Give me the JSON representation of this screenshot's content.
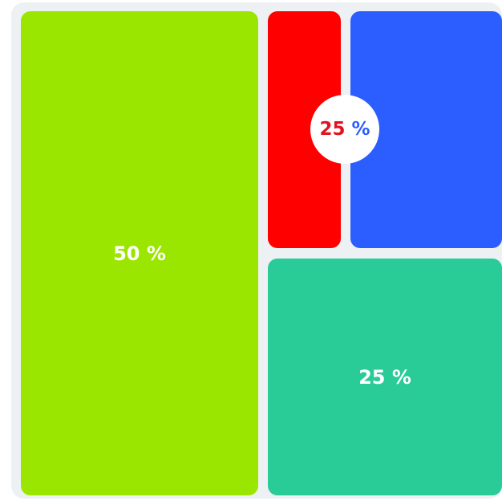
{
  "tiles": [
    {
      "label": "50 %",
      "color": "#9be600"
    },
    {
      "label": "",
      "color": "#ff0000"
    },
    {
      "label": "",
      "color": "#2b5dff"
    },
    {
      "label": "25 %",
      "color": "#29cb97"
    }
  ],
  "badge": {
    "number": "25",
    "unit": "%",
    "number_color": "#e0141e",
    "unit_color": "#2b5dff"
  }
}
